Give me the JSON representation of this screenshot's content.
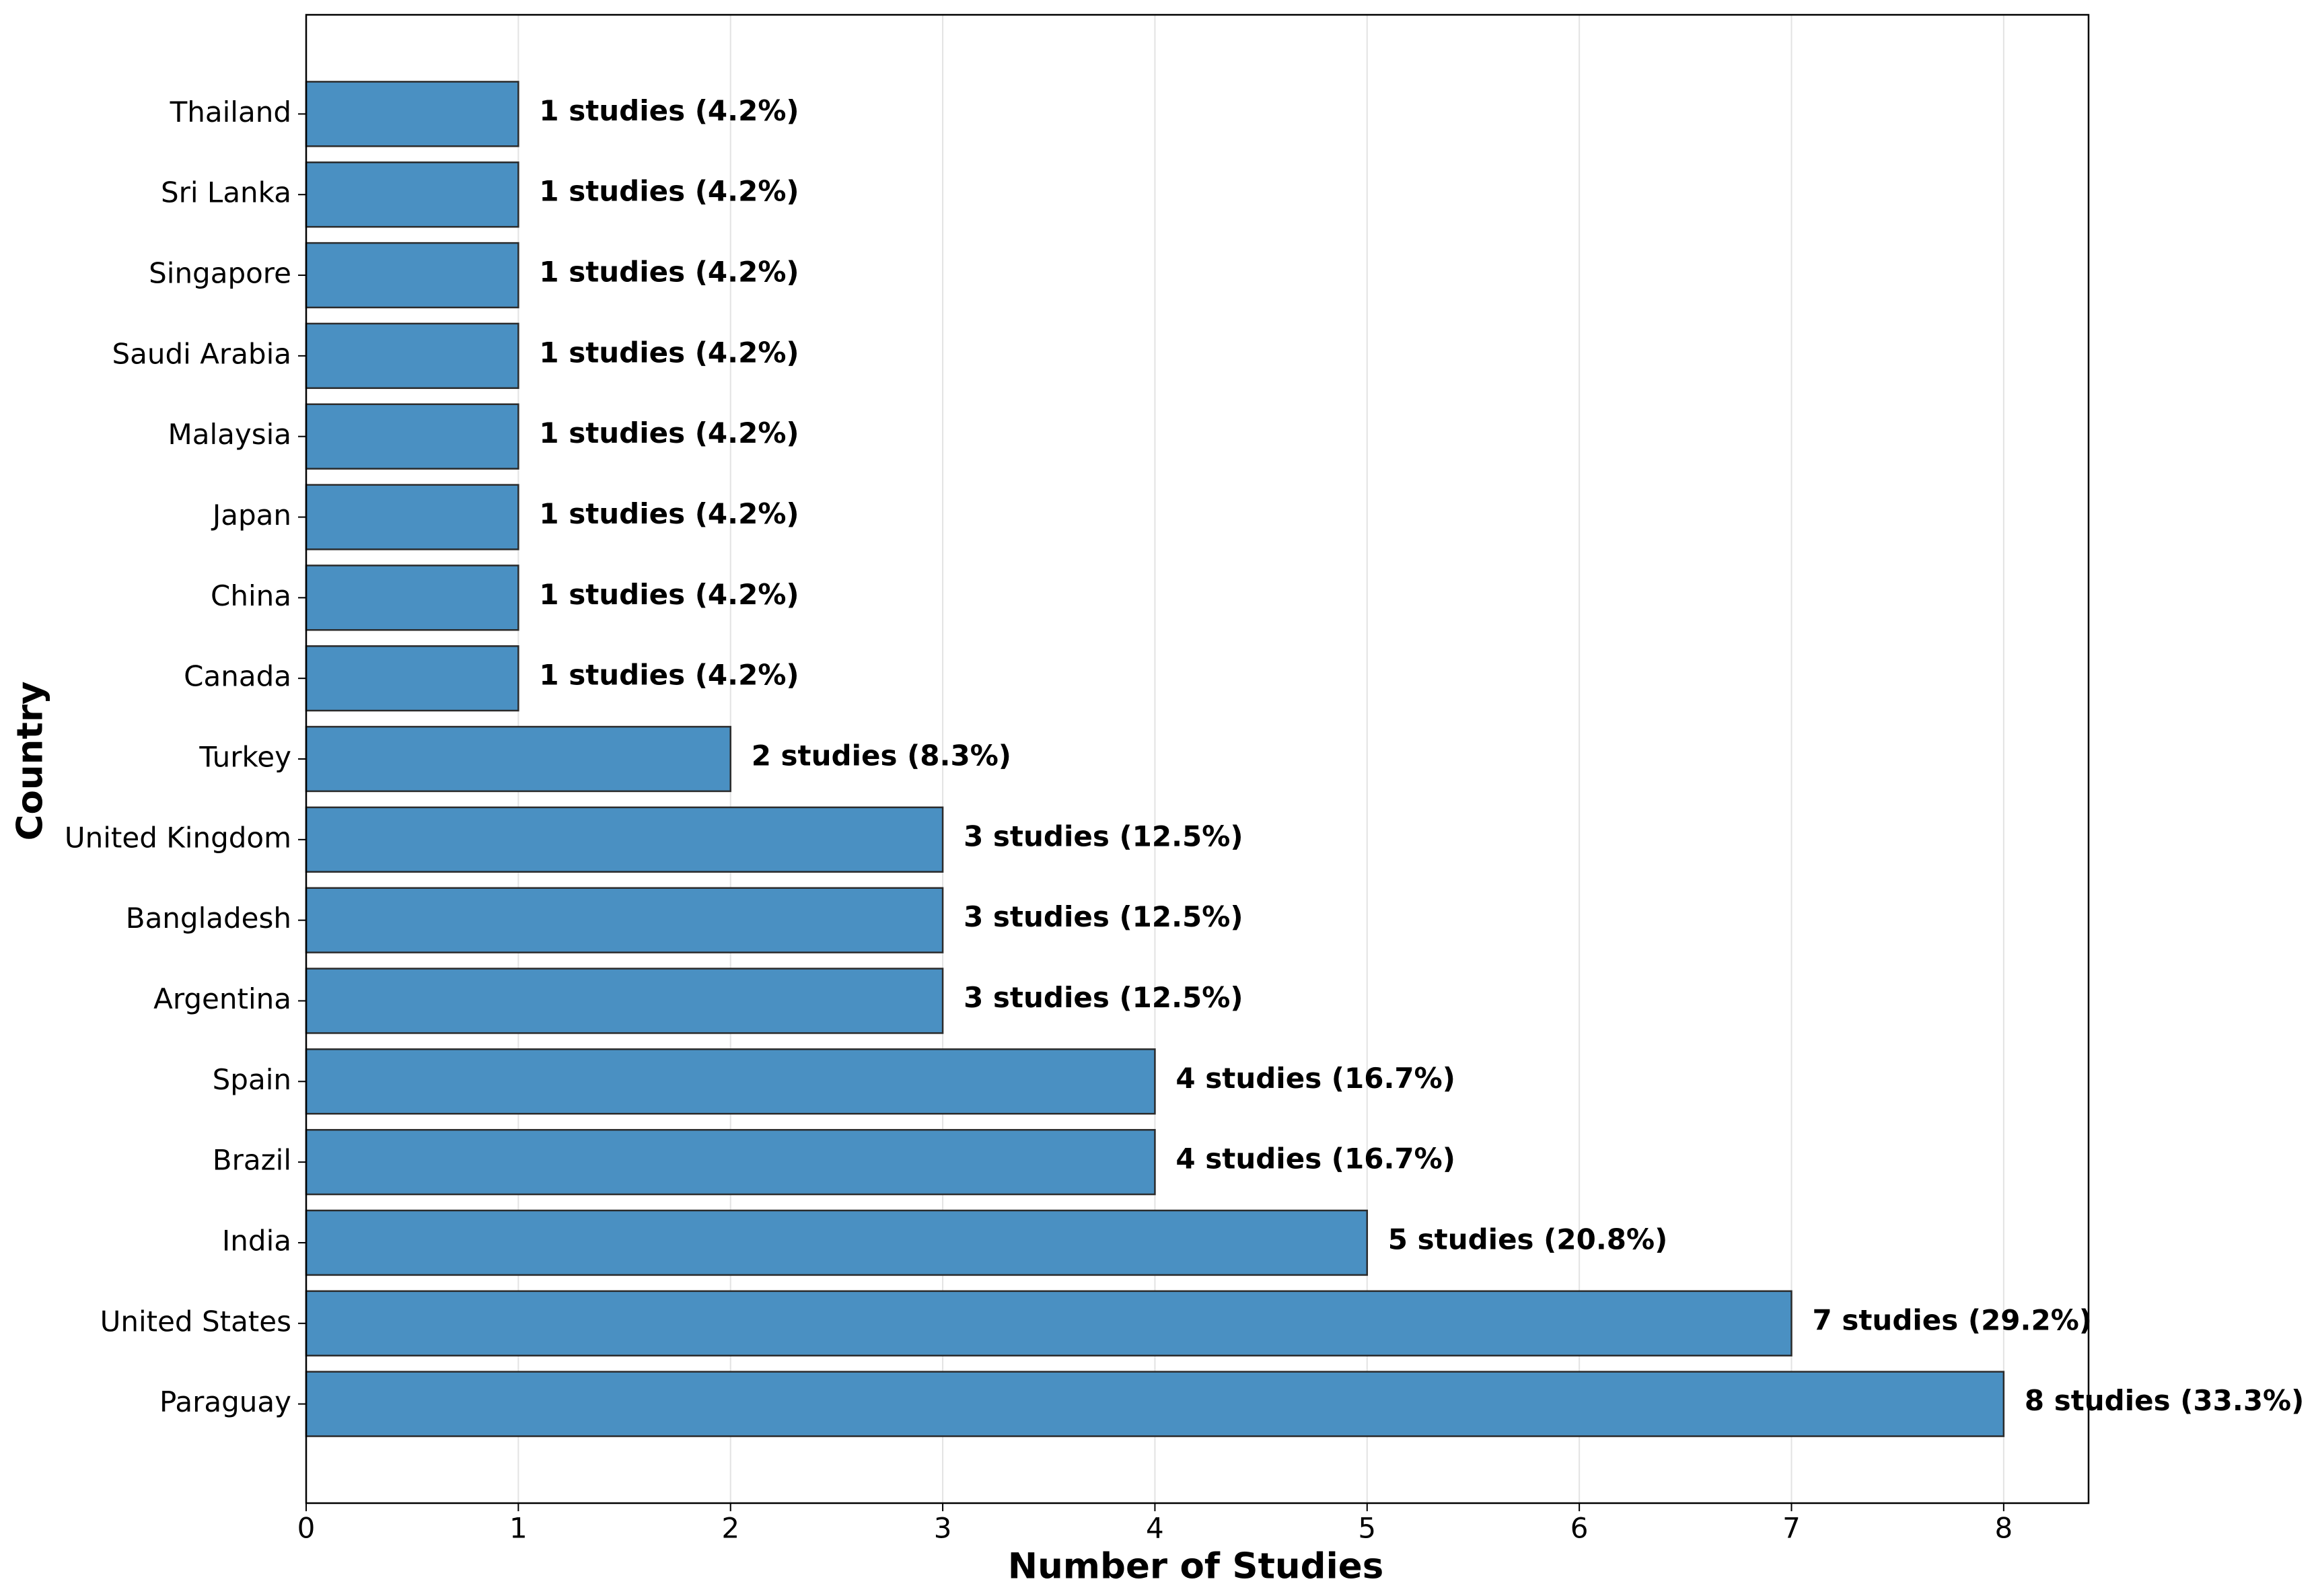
{
  "chart_data": {
    "type": "barh",
    "xlabel": "Number of Studies",
    "ylabel": "Country",
    "categories": [
      "Paraguay",
      "United States",
      "India",
      "Brazil",
      "Spain",
      "Argentina",
      "Bangladesh",
      "United Kingdom",
      "Turkey",
      "Canada",
      "China",
      "Japan",
      "Malaysia",
      "Saudi Arabia",
      "Singapore",
      "Sri Lanka",
      "Thailand"
    ],
    "values": [
      8,
      7,
      5,
      4,
      4,
      3,
      3,
      3,
      2,
      1,
      1,
      1,
      1,
      1,
      1,
      1,
      1
    ],
    "value_labels": [
      "8 studies (33.3%)",
      "7 studies (29.2%)",
      "5 studies (20.8%)",
      "4 studies (16.7%)",
      "4 studies (16.7%)",
      "3 studies (12.5%)",
      "3 studies (12.5%)",
      "3 studies (12.5%)",
      "2 studies (8.3%)",
      "1 studies (4.2%)",
      "1 studies (4.2%)",
      "1 studies (4.2%)",
      "1 studies (4.2%)",
      "1 studies (4.2%)",
      "1 studies (4.2%)",
      "1 studies (4.2%)",
      "1 studies (4.2%)"
    ],
    "color": "#4a90c2",
    "xlim": [
      0,
      8.4
    ],
    "xticks": [
      0,
      1,
      2,
      3,
      4,
      5,
      6,
      7,
      8
    ],
    "grid": true
  }
}
